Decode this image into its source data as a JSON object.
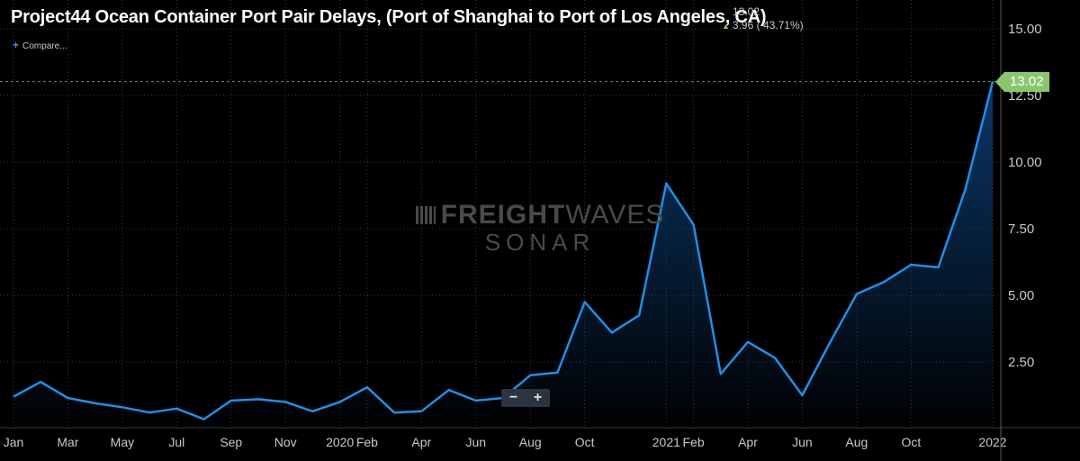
{
  "header": {
    "title": "Project44 Ocean Container Port Pair Delays, (Port of Shanghai to Port of Los Angeles, CA)",
    "last_value": "13.02",
    "change": "3.96 ( 43.71%)",
    "compare_label": "Compare..."
  },
  "watermark": {
    "line1_bold": "FREIGHT",
    "line1_thin": "WAVES",
    "line2": "SONAR"
  },
  "price_tag": "13.02",
  "zoom": {
    "minus": "−",
    "plus": "+"
  },
  "colors": {
    "line": "#1e90e8",
    "area_top": "#0b3a6e",
    "grid": "#3a3a3a",
    "axis_text": "#c8c8c8",
    "price_tag": "#8bc76a",
    "up_arrow": "#7ac943"
  },
  "chart_data": {
    "type": "area",
    "title": "Project44 Ocean Container Port Pair Delays, (Port of Shanghai to Port of Los Angeles, CA)",
    "x": [
      "2019-01",
      "2019-02",
      "2019-03",
      "2019-04",
      "2019-05",
      "2019-06",
      "2019-07",
      "2019-08",
      "2019-09",
      "2019-10",
      "2019-11",
      "2019-12",
      "2020-01",
      "2020-02",
      "2020-03",
      "2020-04",
      "2020-05",
      "2020-06",
      "2020-07",
      "2020-08",
      "2020-09",
      "2020-10",
      "2020-11",
      "2020-12",
      "2021-01",
      "2021-02",
      "2021-03",
      "2021-04",
      "2021-05",
      "2021-06",
      "2021-07",
      "2021-08",
      "2021-09",
      "2021-10",
      "2021-11",
      "2021-12",
      "2022-01"
    ],
    "series": [
      {
        "values": [
          1.2,
          1.75,
          1.15,
          0.95,
          0.8,
          0.6,
          0.75,
          0.35,
          1.05,
          1.1,
          1.0,
          0.65,
          1.0,
          1.55,
          0.6,
          0.65,
          1.45,
          1.05,
          1.15,
          2.0,
          2.1,
          4.75,
          3.6,
          4.25,
          9.2,
          7.65,
          2.05,
          3.25,
          2.65,
          1.25,
          3.2,
          5.05,
          5.5,
          6.15,
          6.05,
          9.0,
          13.02
        ]
      }
    ],
    "x_tick_labels": [
      "Jan",
      "Mar",
      "May",
      "Jul",
      "Sep",
      "Nov",
      "2020",
      "Feb",
      "Apr",
      "Jun",
      "Aug",
      "Oct",
      "2021",
      "Feb",
      "Apr",
      "Jun",
      "Aug",
      "Oct",
      "2022"
    ],
    "x_tick_dates": [
      "2019-01",
      "2019-03",
      "2019-05",
      "2019-07",
      "2019-09",
      "2019-11",
      "2020-01",
      "2020-02",
      "2020-04",
      "2020-06",
      "2020-08",
      "2020-10",
      "2021-01",
      "2021-02",
      "2021-04",
      "2021-06",
      "2021-08",
      "2021-10",
      "2022-01"
    ],
    "y_ticks": [
      "2.50",
      "5.00",
      "7.50",
      "10.00",
      "12.50",
      "15.00"
    ],
    "ylim": [
      0,
      16.0
    ],
    "grid": true,
    "last_value": 13.02
  }
}
